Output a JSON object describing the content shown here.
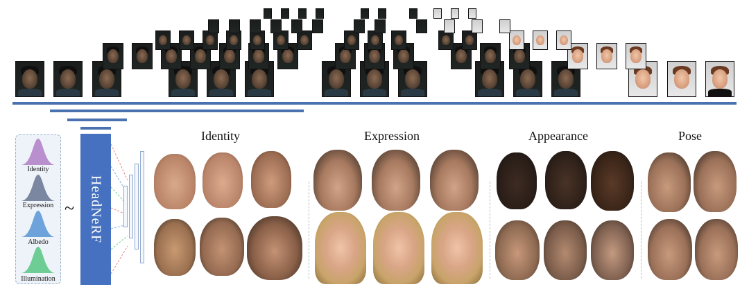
{
  "categories": {
    "identity": "Identity",
    "expression": "Expression",
    "appearance": "Appearance",
    "pose": "Pose"
  },
  "latent_codes": {
    "identity": "Identity",
    "expression": "Expression",
    "albedo": "Albedo",
    "illumination": "Illumination"
  },
  "tilde": "~",
  "model_name": "HeadNeRF",
  "colors": {
    "accent_blue": "#4a72b0",
    "model_block": "#4571c0",
    "identity_curve": "#b07cc6",
    "expression_curve": "#6e7a96",
    "albedo_curve": "#5e9ad6",
    "illumination_curve": "#5fc98a"
  }
}
